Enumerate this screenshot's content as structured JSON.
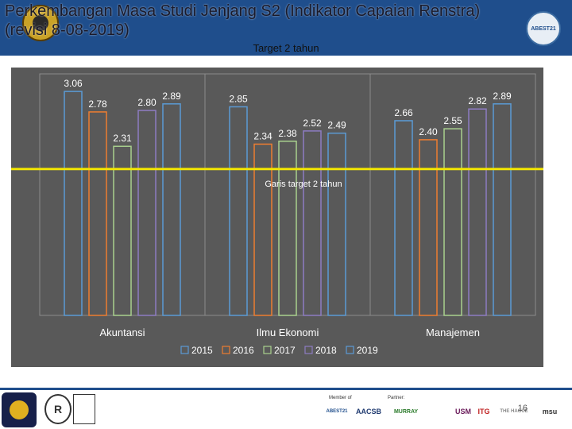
{
  "header": {
    "title": "Perkembangan Masa Studi Jenjang S2 (Indikator Capaian Renstra) (revisi 8-08-2019)",
    "subtitle": "Target 2 tahun",
    "badge": "ABEST21"
  },
  "colors": {
    "header_bg": "#1f4e8c",
    "plot_bg": "#595959",
    "target_line": "#f2e500",
    "series": [
      "#5b9bd5",
      "#ed7d31",
      "#a9d18e",
      "#8e7cc3",
      "#5b9bd5"
    ]
  },
  "chart_data": {
    "type": "bar",
    "title": "",
    "xlabel": "",
    "ylabel": "",
    "ylim": [
      0,
      3.3
    ],
    "grid": false,
    "legend": "bottom",
    "categories": [
      "Akuntansi",
      "Ilmu Ekonomi",
      "Manajemen"
    ],
    "series": [
      {
        "name": "2015",
        "values": [
          3.06,
          2.85,
          2.66
        ],
        "labels": [
          "3.06",
          "2.85",
          "2.66"
        ]
      },
      {
        "name": "2016",
        "values": [
          2.78,
          2.34,
          2.4
        ],
        "labels": [
          "2.78",
          "2.34",
          "2.40"
        ]
      },
      {
        "name": "2017",
        "values": [
          2.31,
          2.38,
          2.55
        ],
        "labels": [
          "2.31",
          "2.38",
          "2.55"
        ]
      },
      {
        "name": "2018",
        "values": [
          2.8,
          2.52,
          2.82
        ],
        "labels": [
          "2.80",
          "2.52",
          "2.82"
        ]
      },
      {
        "name": "2019",
        "values": [
          2.89,
          2.49,
          2.89
        ],
        "labels": [
          "2.89",
          "2.49",
          "2.89"
        ]
      }
    ],
    "target": {
      "value": 2.0,
      "label": "Garis target 2 tahun"
    }
  },
  "footer": {
    "member_label": "Member of",
    "partner_label": "Partner:",
    "page_number": "16",
    "partners": [
      "ABEST21",
      "AACSB",
      "MURRAY",
      "USM",
      "ITG",
      "THE HAGUE",
      "msu"
    ]
  }
}
